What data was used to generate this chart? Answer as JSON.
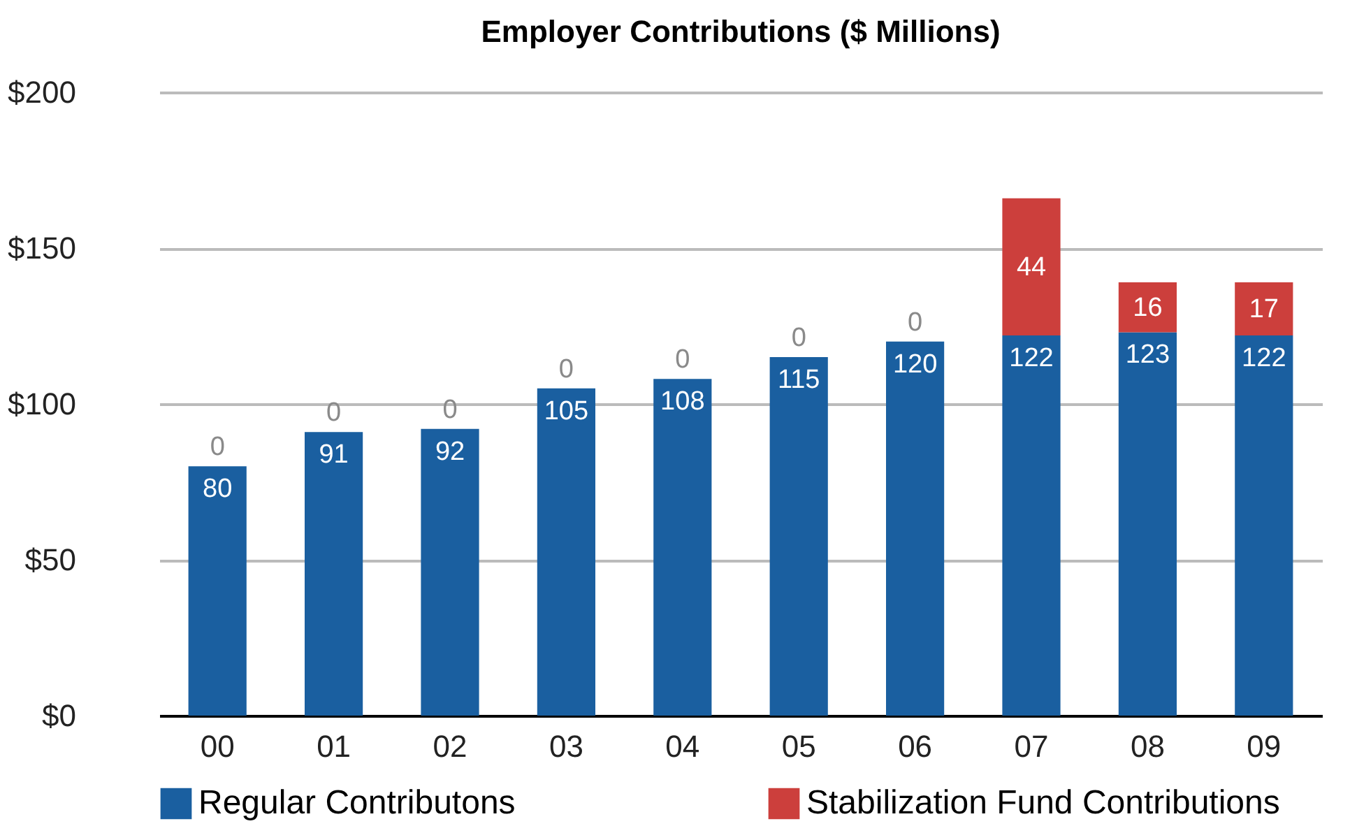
{
  "chart_data": {
    "type": "bar",
    "title": "Employer Contributions ($ Millions)",
    "stacked": true,
    "categories": [
      "00",
      "01",
      "02",
      "03",
      "04",
      "05",
      "06",
      "07",
      "08",
      "09"
    ],
    "series": [
      {
        "name": "Regular Contributons",
        "color": "#1a5fa0",
        "values": [
          80,
          91,
          92,
          105,
          108,
          115,
          120,
          122,
          123,
          122
        ]
      },
      {
        "name": "Stabilization Fund Contributions",
        "color": "#cc3f3c",
        "values": [
          0,
          0,
          0,
          0,
          0,
          0,
          0,
          44,
          16,
          17
        ]
      }
    ],
    "ylim": [
      0,
      200
    ],
    "yticks": [
      {
        "value": 0,
        "label": "$0"
      },
      {
        "value": 50,
        "label": "$50"
      },
      {
        "value": 100,
        "label": "$100"
      },
      {
        "value": 150,
        "label": "$150"
      },
      {
        "value": 200,
        "label": "$200"
      }
    ],
    "grid": "y",
    "legend": "bottom",
    "data_labels": true
  }
}
